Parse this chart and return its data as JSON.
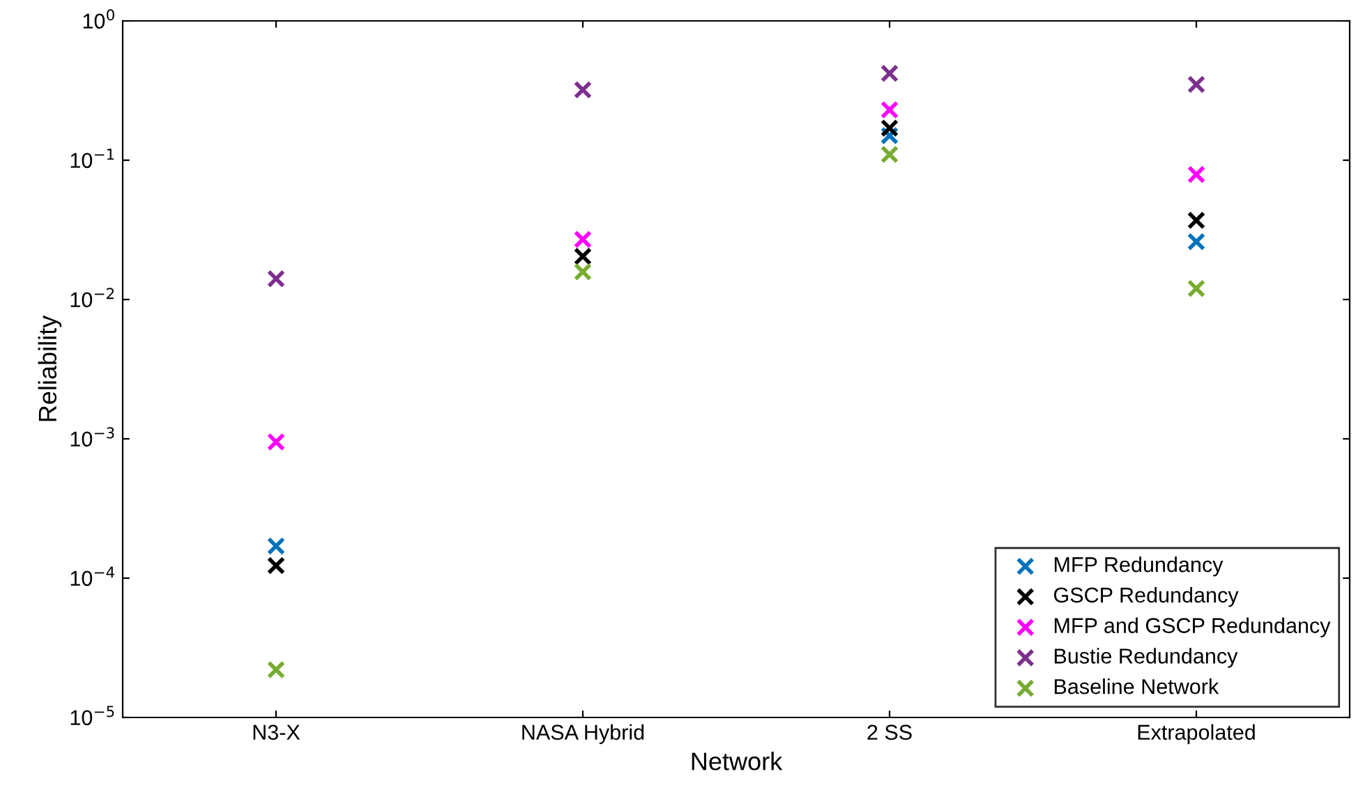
{
  "chart_data": {
    "type": "scatter",
    "xlabel": "Network",
    "ylabel": "Reliability",
    "categories": [
      "N3-X",
      "NASA Hybrid",
      "2 SS",
      "Extrapolated"
    ],
    "series": [
      {
        "name": "MFP Redundancy",
        "color": "#0072bd",
        "values": [
          0.00017,
          null,
          0.15,
          0.026
        ]
      },
      {
        "name": "GSCP Redundancy",
        "color": "#000000",
        "values": [
          0.000123,
          0.0204,
          0.17,
          0.037
        ]
      },
      {
        "name": "MFP and GSCP Redundancy",
        "color": "#ff00ff",
        "values": [
          0.00095,
          0.027,
          0.23,
          0.079
        ]
      },
      {
        "name": "Bustie Redundancy",
        "color": "#7e2f8e",
        "values": [
          0.0141,
          0.32,
          0.42,
          0.35
        ]
      },
      {
        "name": "Baseline Network",
        "color": "#77ac30",
        "values": [
          2.2e-05,
          0.0158,
          0.11,
          0.012
        ]
      }
    ],
    "log": "y",
    "ylim": [
      1e-05,
      1
    ],
    "yticks": [
      {
        "value": 1e-05,
        "label": "10$^{−5}$"
      },
      {
        "value": 0.0001,
        "label": "10$^{−4}$"
      },
      {
        "value": 0.001,
        "label": "10$^{−3}$"
      },
      {
        "value": 0.01,
        "label": "10$^{−2}$"
      },
      {
        "value": 0.1,
        "label": "10$^{−1}$"
      },
      {
        "value": 1,
        "label": "10$^{0}$"
      }
    ],
    "marker": "cross",
    "grid": false,
    "legend": "bottom right"
  }
}
